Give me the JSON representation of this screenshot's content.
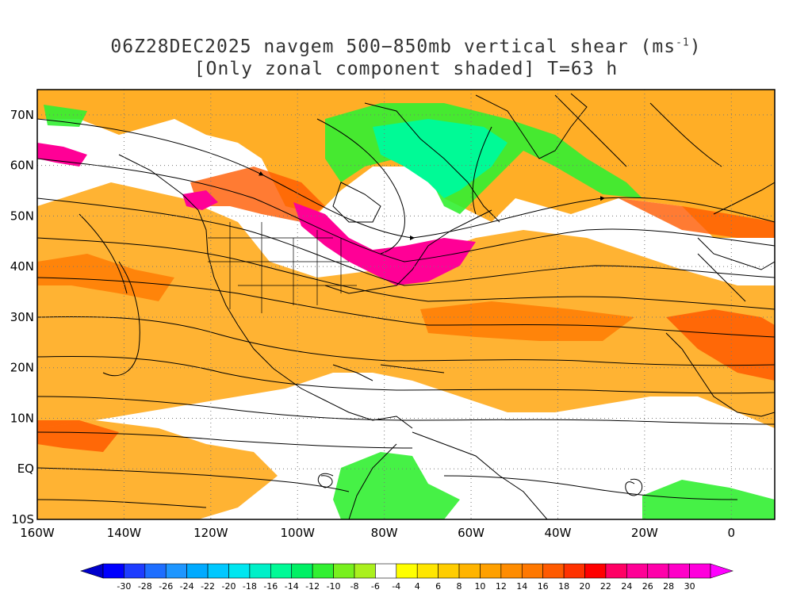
{
  "title": {
    "line1_prefix": "06Z28DEC2025 navgem 500−850mb vertical shear (ms",
    "line1_sup": "-1",
    "line1_suffix": ")",
    "line2": "[Only zonal component shaded] T=63 h"
  },
  "map": {
    "lon_range": [
      -160,
      10
    ],
    "lat_range": [
      -10,
      75
    ],
    "lat_labels": [
      "70N",
      "60N",
      "50N",
      "40N",
      "30N",
      "20N",
      "10N",
      "EQ",
      "10S"
    ],
    "lat_values": [
      70,
      60,
      50,
      40,
      30,
      20,
      10,
      0,
      -10
    ],
    "lon_labels": [
      "160W",
      "140W",
      "120W",
      "100W",
      "80W",
      "60W",
      "40W",
      "20W",
      "0"
    ],
    "lon_values": [
      -160,
      -140,
      -120,
      -100,
      -80,
      -60,
      -40,
      -20,
      0
    ],
    "gridlines": "dotted",
    "field": "zonal component of 500-850mb vertical shear"
  },
  "colorbar": {
    "labels": [
      "-30",
      "-28",
      "-26",
      "-24",
      "-22",
      "-20",
      "-18",
      "-16",
      "-14",
      "-12",
      "-10",
      "-8",
      "-6",
      "-4",
      "4",
      "6",
      "8",
      "10",
      "12",
      "14",
      "16",
      "18",
      "20",
      "22",
      "24",
      "26",
      "28",
      "30"
    ],
    "colors": [
      "#0000ff",
      "#1e3cff",
      "#1e6eff",
      "#1e96ff",
      "#00aaff",
      "#00c8ff",
      "#00e6f0",
      "#00f0c8",
      "#00fa96",
      "#00f064",
      "#32f032",
      "#78f01e",
      "#aaf01e",
      "#ffffff",
      "#ffff00",
      "#ffe600",
      "#ffcd00",
      "#ffb400",
      "#ffa000",
      "#ff8c00",
      "#ff7800",
      "#ff5a00",
      "#ff3200",
      "#ff0000",
      "#ff0064",
      "#ff0096",
      "#ff00aa",
      "#ff00c8",
      "#ff00dc"
    ],
    "under_color": "#0000cc",
    "over_color": "#ff00ff"
  }
}
